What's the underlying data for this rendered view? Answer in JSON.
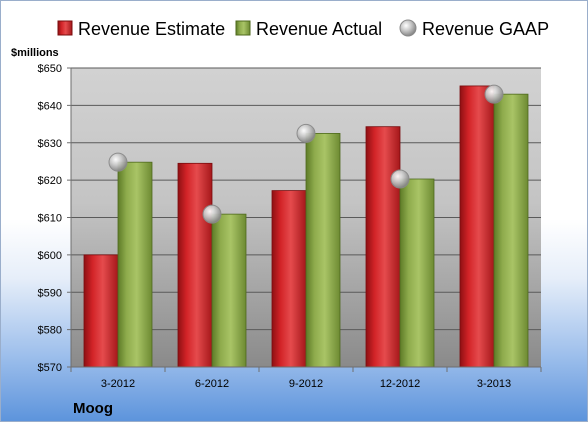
{
  "chart_data": {
    "type": "bar",
    "unit_label": "$millions",
    "company": "Moog",
    "categories": [
      "3-2012",
      "6-2012",
      "9-2012",
      "12-2012",
      "3-2013"
    ],
    "series": [
      {
        "name": "Revenue Estimate",
        "kind": "bar",
        "color": "#d42427",
        "values": [
          600,
          624.5,
          617.2,
          634.3,
          645.2
        ]
      },
      {
        "name": "Revenue Actual",
        "kind": "bar",
        "color": "#8caa4a",
        "values": [
          624.8,
          610.9,
          632.5,
          620.3,
          643
        ]
      },
      {
        "name": "Revenue GAAP",
        "kind": "marker",
        "color": "#b4b4b4",
        "values": [
          624.8,
          610.9,
          632.5,
          620.3,
          643
        ]
      }
    ],
    "yticks": [
      "$570",
      "$580",
      "$590",
      "$600",
      "$610",
      "$620",
      "$630",
      "$640",
      "$650"
    ],
    "ylim": [
      570,
      650
    ],
    "grid": true,
    "legend_position": "top"
  }
}
